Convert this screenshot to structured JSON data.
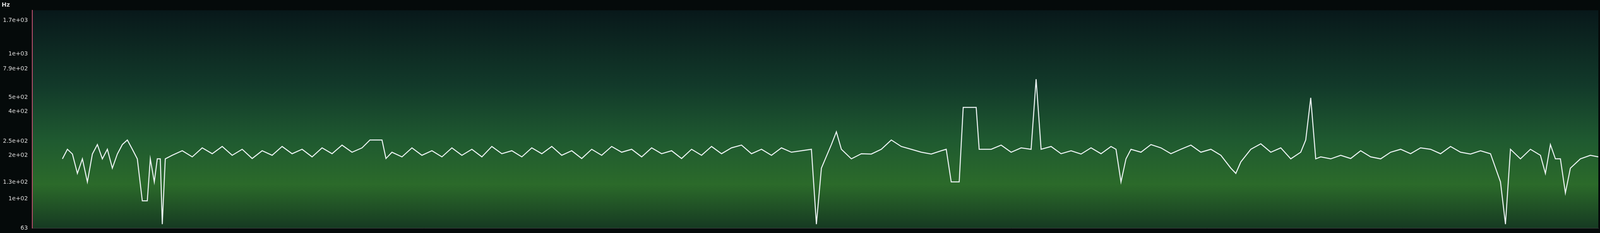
{
  "chart_data": {
    "type": "line",
    "y_label": "Hz",
    "log": "y",
    "grid": false,
    "tick_labels": "y",
    "xlim": [
      0,
      1568
    ],
    "ylim": [
      63,
      2000
    ],
    "yticks": [
      63,
      {
        "value": 100,
        "label": "1e+02"
      },
      {
        "value": 130,
        "label": "1.3e+02"
      },
      {
        "value": 200,
        "label": "2e+02"
      },
      {
        "value": 250,
        "label": "2.5e+02"
      },
      {
        "value": 400,
        "label": "4e+02"
      },
      {
        "value": 500,
        "label": "5e+02"
      },
      {
        "value": 790,
        "label": "7.9e+02"
      },
      {
        "value": 1000,
        "label": "1e+03"
      },
      {
        "value": 1700,
        "label": "1.7e+03"
      }
    ],
    "color": "#e8f0f0",
    "line_style": "solid",
    "x": [
      30,
      35,
      40,
      45,
      50,
      55,
      60,
      65,
      70,
      75,
      80,
      85,
      90,
      95,
      100,
      105,
      110,
      115,
      118,
      122,
      125,
      128,
      130,
      133,
      140,
      150,
      160,
      170,
      180,
      190,
      200,
      210,
      220,
      230,
      240,
      250,
      260,
      270,
      280,
      290,
      300,
      310,
      320,
      330,
      338,
      342,
      350,
      354,
      360,
      370,
      380,
      390,
      400,
      410,
      420,
      430,
      440,
      450,
      460,
      470,
      480,
      490,
      500,
      510,
      520,
      530,
      540,
      550,
      560,
      570,
      580,
      590,
      600,
      610,
      620,
      630,
      640,
      650,
      660,
      670,
      680,
      690,
      700,
      710,
      720,
      730,
      740,
      750,
      760,
      770,
      780,
      785,
      790,
      800,
      805,
      810,
      820,
      830,
      840,
      850,
      860,
      870,
      880,
      890,
      900,
      910,
      915,
      920,
      928,
      932,
      945,
      948,
      960,
      970,
      980,
      990,
      1000,
      1005,
      1010,
      1020,
      1030,
      1040,
      1050,
      1060,
      1070,
      1080,
      1085,
      1090,
      1095,
      1100,
      1110,
      1120,
      1130,
      1140,
      1150,
      1160,
      1170,
      1180,
      1190,
      1200,
      1205,
      1210,
      1220,
      1230,
      1240,
      1250,
      1260,
      1270,
      1275,
      1280,
      1285,
      1290,
      1300,
      1310,
      1320,
      1330,
      1340,
      1350,
      1360,
      1370,
      1380,
      1390,
      1400,
      1410,
      1420,
      1430,
      1440,
      1450,
      1460,
      1470,
      1475,
      1480,
      1490,
      1500,
      1510,
      1515,
      1520,
      1525,
      1530,
      1535,
      1540,
      1550,
      1560,
      1568
    ],
    "values": [
      189,
      220,
      204,
      150,
      189,
      131,
      204,
      237,
      189,
      220,
      163,
      204,
      237,
      255,
      220,
      189,
      97,
      97,
      189,
      131,
      189,
      189,
      67,
      189,
      200,
      215,
      195,
      225,
      205,
      230,
      200,
      220,
      190,
      215,
      200,
      230,
      205,
      220,
      195,
      225,
      205,
      235,
      210,
      225,
      255,
      255,
      255,
      190,
      210,
      195,
      225,
      200,
      215,
      195,
      225,
      200,
      220,
      195,
      230,
      205,
      215,
      195,
      225,
      205,
      230,
      200,
      215,
      190,
      220,
      200,
      230,
      210,
      220,
      195,
      225,
      205,
      215,
      190,
      220,
      200,
      230,
      205,
      225,
      235,
      205,
      220,
      200,
      225,
      210,
      215,
      220,
      67,
      163,
      237,
      290,
      220,
      189,
      205,
      204,
      220,
      255,
      230,
      220,
      210,
      204,
      215,
      220,
      131,
      131,
      428,
      428,
      220,
      220,
      235,
      210,
      225,
      220,
      670,
      220,
      230,
      205,
      215,
      204,
      225,
      205,
      230,
      220,
      131,
      189,
      220,
      210,
      237,
      225,
      205,
      220,
      235,
      210,
      220,
      200,
      163,
      150,
      180,
      220,
      240,
      210,
      225,
      189,
      210,
      255,
      498,
      189,
      195,
      189,
      200,
      190,
      215,
      195,
      189,
      210,
      220,
      205,
      225,
      220,
      205,
      230,
      210,
      204,
      215,
      205,
      131,
      67,
      220,
      189,
      220,
      200,
      150,
      237,
      189,
      189,
      110,
      163,
      189,
      200,
      195
    ]
  }
}
